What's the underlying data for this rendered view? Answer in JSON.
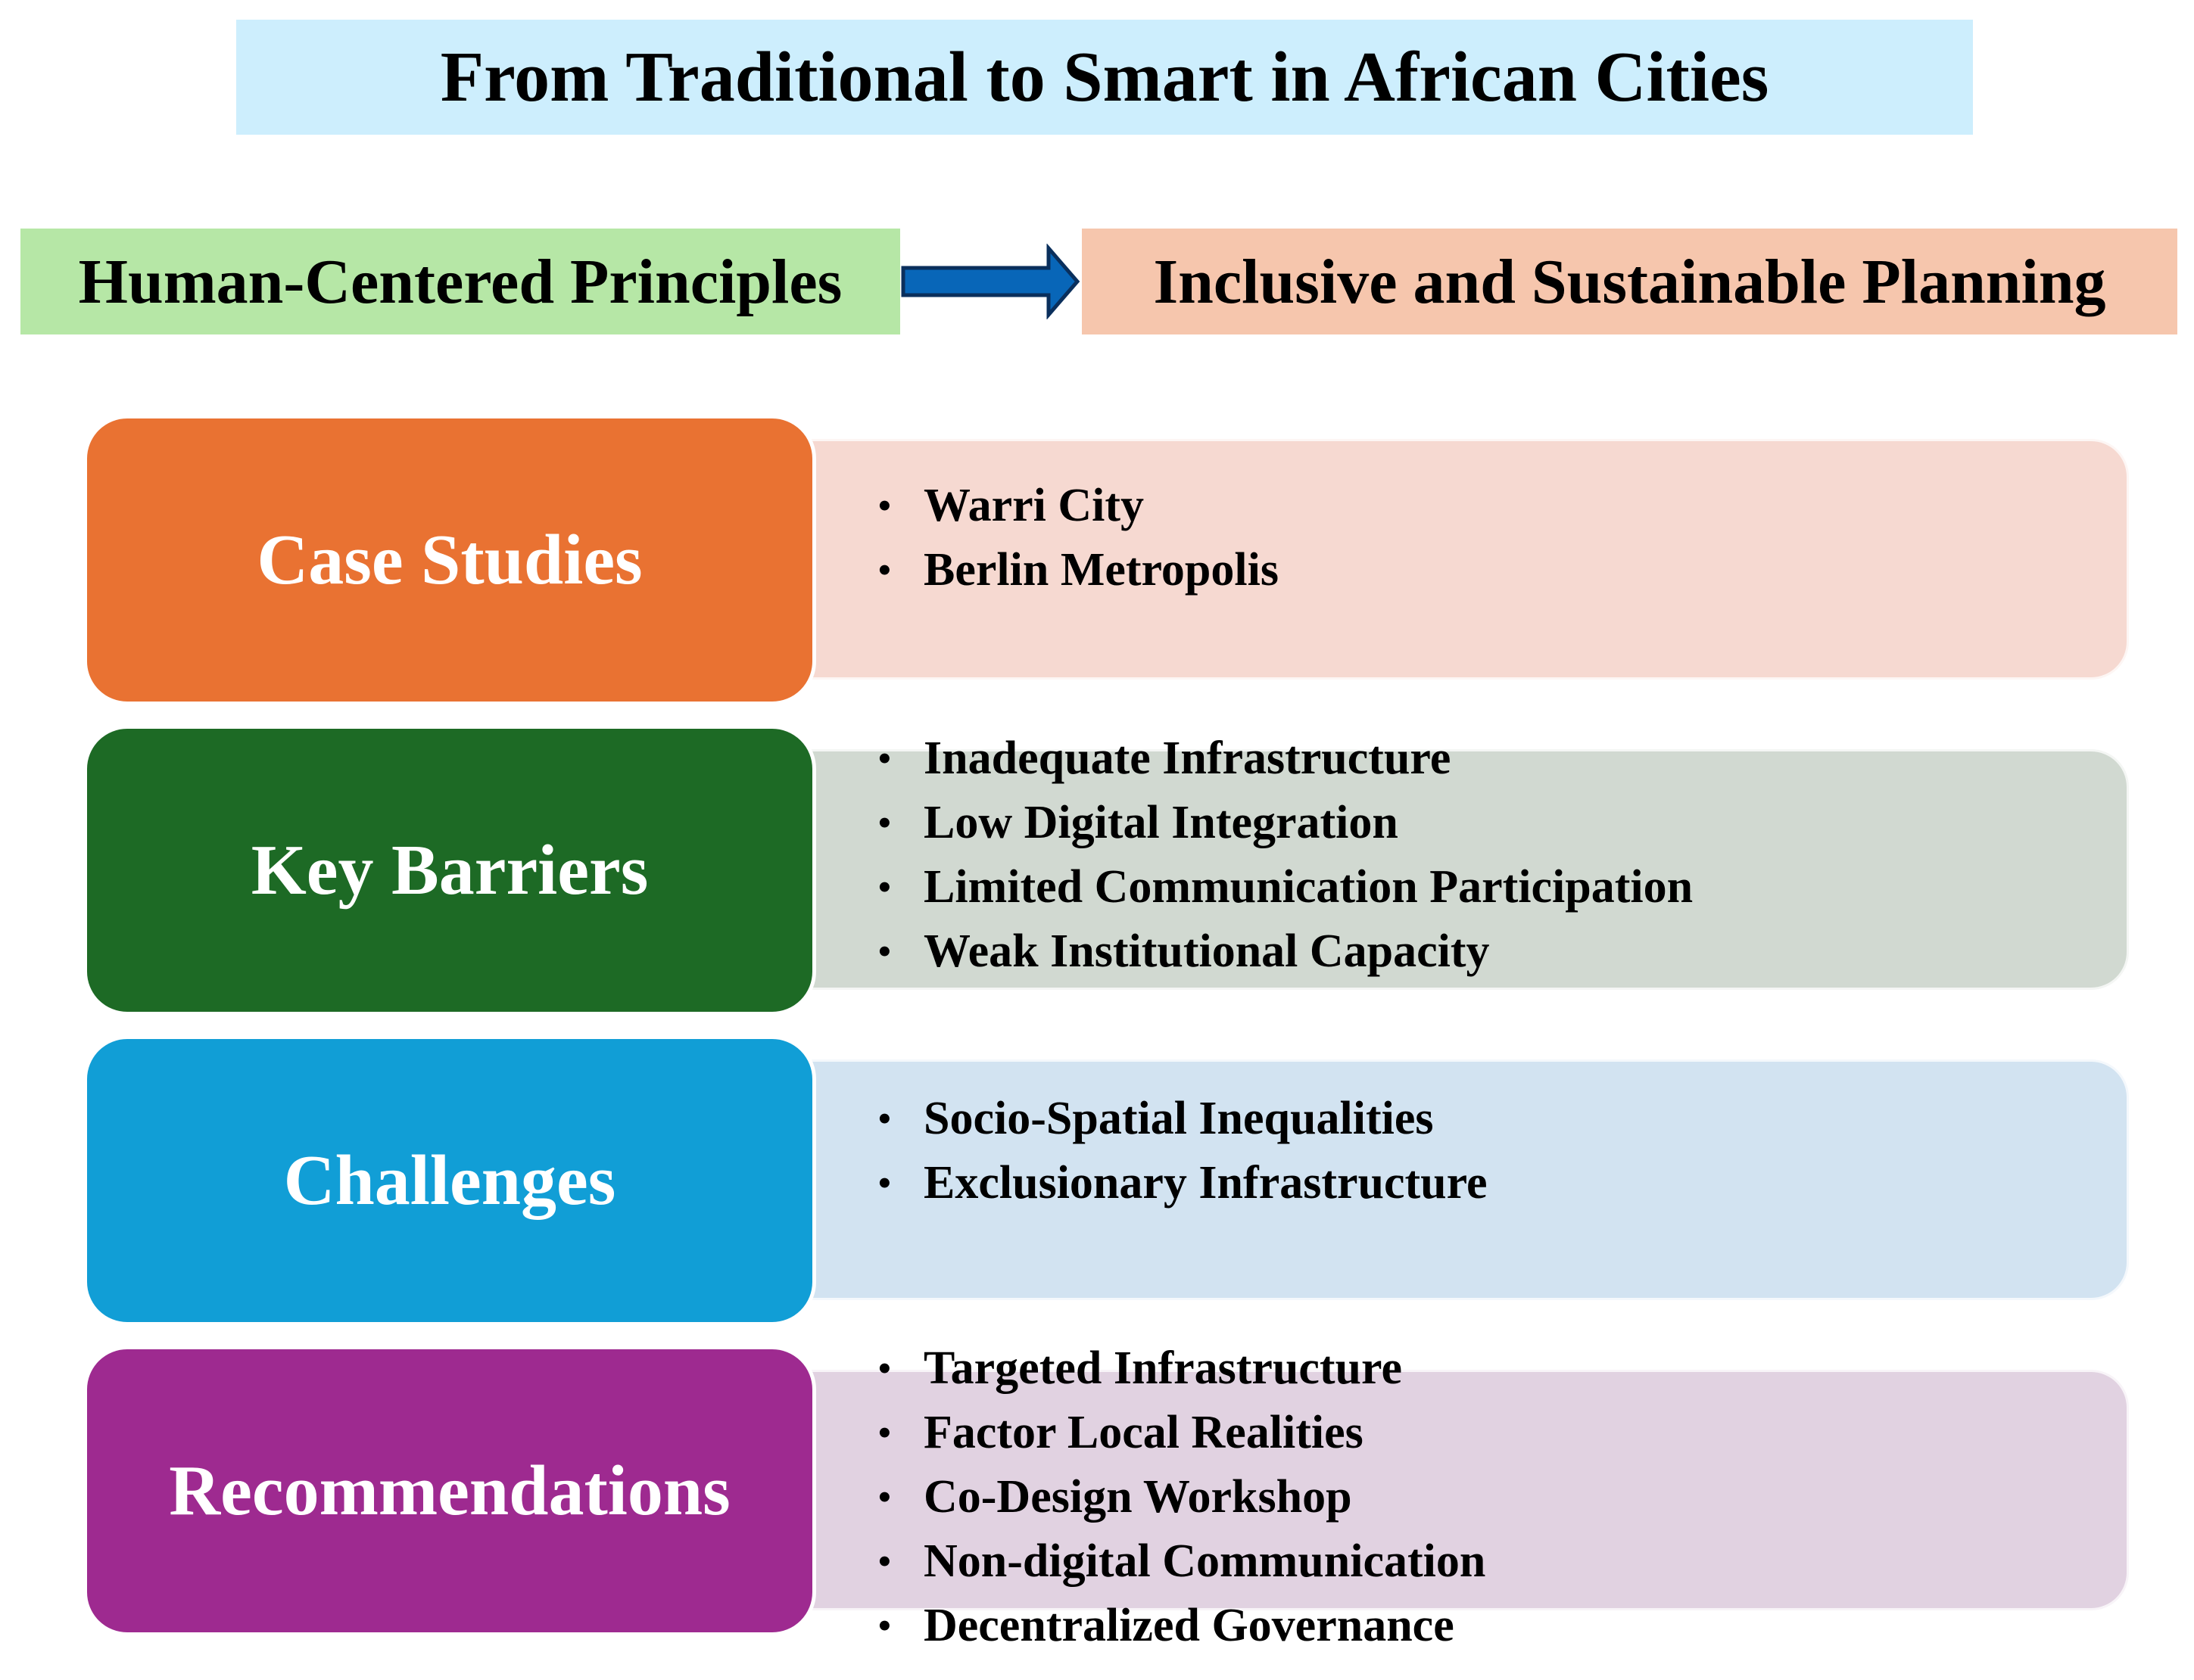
{
  "title": "From Traditional to Smart in African Cities",
  "flow": {
    "from_label": "Human-Centered Principles",
    "to_label": "Inclusive and Sustainable Planning"
  },
  "colors": {
    "title_bg": "#cdeefd",
    "from_bg": "#b6e7a6",
    "to_bg": "#f6c6ad",
    "arrow": "#0866b8"
  },
  "sections": [
    {
      "label": "Case Studies",
      "label_color": "#e97232",
      "content_color": "#f6d9d1",
      "items": [
        "Warri City",
        "Berlin Metropolis"
      ]
    },
    {
      "label": "Key Barriers",
      "label_color": "#1d6a25",
      "content_color": "#d1d9d1",
      "items": [
        "Inadequate Infrastructure",
        "Low Digital Integration",
        "Limited Communication Participation",
        "Weak Institutional Capacity"
      ]
    },
    {
      "label": "Challenges",
      "label_color": "#119ed6",
      "content_color": "#d2e3f1",
      "items": [
        "Socio-Spatial Inequalities",
        "Exclusionary Infrastructure"
      ]
    },
    {
      "label": "Recommendations",
      "label_color": "#9e2a90",
      "content_color": "#e1d2e1",
      "items": [
        "Targeted Infrastructure",
        "Factor Local Realities",
        "Co-Design Workshop",
        "Non-digital Communication",
        "Decentralized Governance"
      ]
    }
  ]
}
